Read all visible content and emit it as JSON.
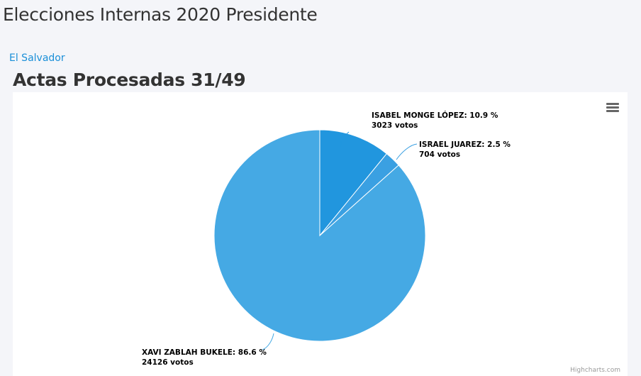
{
  "header": {
    "title": "Elecciones Internas 2020 Presidente",
    "breadcrumb": "El Salvador",
    "subtitle": "Actas Procesadas 31/49"
  },
  "chart_data": {
    "type": "pie",
    "slices": [
      {
        "name": "ISABEL MONGE LÓPEZ",
        "percent": 10.9,
        "votes": 3023,
        "label": "ISABEL MONGE LÓPEZ: 10.9 %",
        "votes_label": "3023 votos",
        "color": "#2196de"
      },
      {
        "name": "ISRAEL JUAREZ",
        "percent": 2.5,
        "votes": 704,
        "label": "ISRAEL JUAREZ: 2.5 %",
        "votes_label": "704 votos",
        "color": "#3aa0e2"
      },
      {
        "name": "XAVI ZABLAH BUKELE",
        "percent": 86.6,
        "votes": 24126,
        "label": "XAVI ZABLAH BUKELE: 86.6 %",
        "votes_label": "24126 votos",
        "color": "#45a9e4"
      }
    ],
    "legend": "none"
  },
  "menu_icon": "hamburger-menu-icon",
  "credits": "Highcharts.com"
}
